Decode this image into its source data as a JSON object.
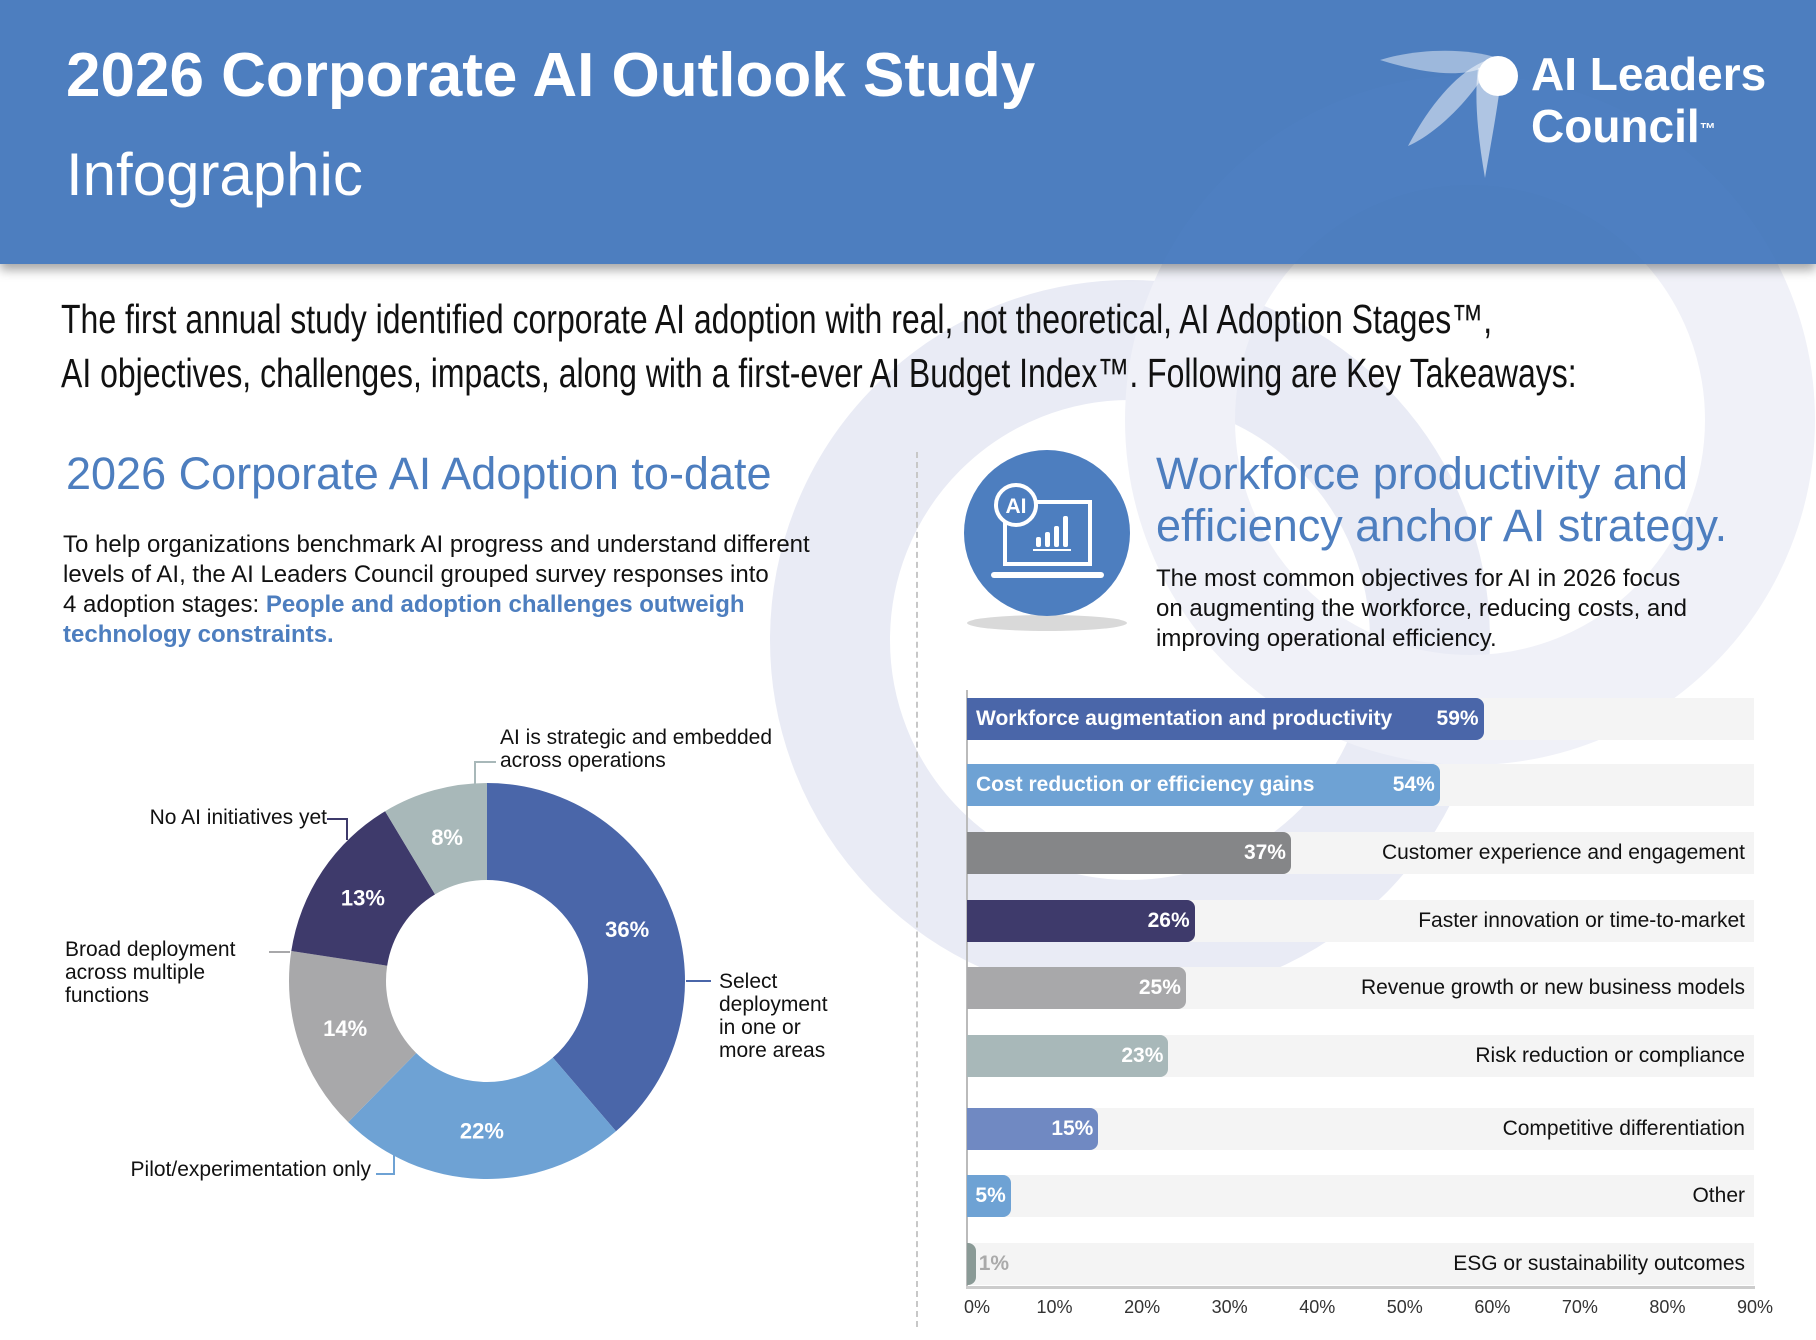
{
  "header": {
    "title": "2026 Corporate AI Outlook Study",
    "subtitle": "Infographic",
    "logo_line1": "AI Leaders",
    "logo_line2": "Council",
    "logo_tm": "™",
    "brand_color": "#4d7ebf"
  },
  "intro": {
    "line1": "The first annual study identified corporate AI adoption with real, not theoretical, AI Adoption Stages™,",
    "line2": "AI objectives, challenges, impacts, along with a first-ever AI Budget Index™.  Following are Key Takeaways:"
  },
  "left": {
    "heading": "2026 Corporate AI Adoption to-date",
    "para_line1": "To help organizations benchmark AI progress and understand different",
    "para_line2": "levels of AI, the AI Leaders Council grouped survey responses into",
    "para_line3_plain": "4 adoption stages: ",
    "para_line3_bold": "People and adoption challenges outweigh",
    "para_line4_bold": "technology constraints."
  },
  "right": {
    "icon": "laptop-ai-chart-icon",
    "icon_text": "AI",
    "heading_line1": "Workforce productivity and",
    "heading_line2": "efficiency anchor AI strategy.",
    "para_line1": "The most common objectives for AI in 2026 focus",
    "para_line2": "on augmenting the workforce, reducing costs, and",
    "para_line3": "improving operational efficiency."
  },
  "chart_data": [
    {
      "type": "pie",
      "variant": "donut",
      "slices": [
        {
          "label_lines": [
            "Select",
            "deployment",
            "in one or",
            "more areas"
          ],
          "value": 36,
          "display": "36%",
          "color": "#4a66a9"
        },
        {
          "label_lines": [
            "Pilot/experimentation only"
          ],
          "value": 22,
          "display": "22%",
          "color": "#6ea2d4"
        },
        {
          "label_lines": [
            "Broad deployment",
            "across multiple",
            "functions"
          ],
          "value": 14,
          "display": "14%",
          "color": "#a8a8aa"
        },
        {
          "label_lines": [
            "No AI initiatives yet"
          ],
          "value": 13,
          "display": "13%",
          "color": "#3e3a6b"
        },
        {
          "label_lines": [
            "AI is strategic and embedded",
            "across operations"
          ],
          "value": 8,
          "display": "8%",
          "color": "#a8b8b9"
        }
      ]
    },
    {
      "type": "bar",
      "orientation": "horizontal",
      "xlim": [
        0,
        90
      ],
      "xticks": [
        "0%",
        "10%",
        "20%",
        "30%",
        "40%",
        "50%",
        "60%",
        "70%",
        "80%",
        "90%"
      ],
      "bars": [
        {
          "label": "Workforce augmentation and productivity",
          "value": 59,
          "display": "59%",
          "color": "#4a66a9",
          "label_inside": true
        },
        {
          "label": "Cost reduction or efficiency gains",
          "value": 54,
          "display": "54%",
          "color": "#6ea2d4",
          "label_inside": true
        },
        {
          "label": "Customer experience and engagement",
          "value": 37,
          "display": "37%",
          "color": "#858688"
        },
        {
          "label": "Faster innovation or time-to-market",
          "value": 26,
          "display": "26%",
          "color": "#3e3a6b"
        },
        {
          "label": "Revenue growth or new business models",
          "value": 25,
          "display": "25%",
          "color": "#a8a8aa"
        },
        {
          "label": "Risk reduction or compliance",
          "value": 23,
          "display": "23%",
          "color": "#a8b8b9"
        },
        {
          "label": "Competitive differentiation",
          "value": 15,
          "display": "15%",
          "color": "#7089c2"
        },
        {
          "label": "Other",
          "value": 5,
          "display": "5%",
          "color": "#6ea2d4"
        },
        {
          "label": "ESG or sustainability outcomes",
          "value": 1,
          "display": "1%",
          "color": "#8a9a96"
        }
      ]
    }
  ]
}
